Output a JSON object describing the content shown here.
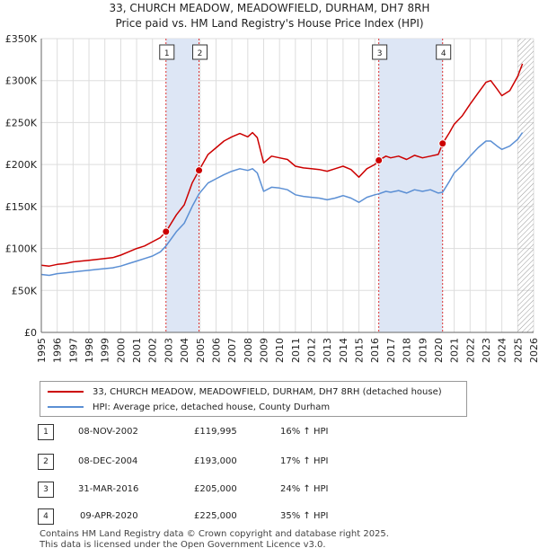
{
  "header": {
    "title_line1": "33, CHURCH MEADOW, MEADOWFIELD, DURHAM, DH7 8RH",
    "title_line2": "Price paid vs. HM Land Registry's House Price Index (HPI)"
  },
  "colors": {
    "property": "#cc0000",
    "hpi": "#5b8fd4",
    "shade": "#dde6f5",
    "grid": "#dddddd"
  },
  "legend": {
    "property_label": "33, CHURCH MEADOW, MEADOWFIELD, DURHAM, DH7 8RH (detached house)",
    "hpi_label": "HPI: Average price, detached house, County Durham"
  },
  "sales": [
    {
      "num": "1",
      "date": "08-NOV-2002",
      "price": "£119,995",
      "hpi_diff": "16% ↑ HPI"
    },
    {
      "num": "2",
      "date": "08-DEC-2004",
      "price": "£193,000",
      "hpi_diff": "17% ↑ HPI"
    },
    {
      "num": "3",
      "date": "31-MAR-2016",
      "price": "£205,000",
      "hpi_diff": "24% ↑ HPI"
    },
    {
      "num": "4",
      "date": "09-APR-2020",
      "price": "£225,000",
      "hpi_diff": "35% ↑ HPI"
    }
  ],
  "footer": {
    "line1": "Contains HM Land Registry data © Crown copyright and database right 2025.",
    "line2": "This data is licensed under the Open Government Licence v3.0."
  },
  "chart_data": {
    "type": "line",
    "title": "Price paid vs. HM Land Registry's House Price Index (HPI)",
    "xlabel": "",
    "ylabel": "",
    "xlim": [
      1995,
      2026
    ],
    "ylim": [
      0,
      350000
    ],
    "y_ticks": [
      {
        "value": 0,
        "label": "£0"
      },
      {
        "value": 50000,
        "label": "£50K"
      },
      {
        "value": 100000,
        "label": "£100K"
      },
      {
        "value": 150000,
        "label": "£150K"
      },
      {
        "value": 200000,
        "label": "£200K"
      },
      {
        "value": 250000,
        "label": "£250K"
      },
      {
        "value": 300000,
        "label": "£300K"
      },
      {
        "value": 350000,
        "label": "£350K"
      }
    ],
    "x_ticks": [
      "1995",
      "1996",
      "1997",
      "1998",
      "1999",
      "2000",
      "2001",
      "2002",
      "2003",
      "2004",
      "2005",
      "2006",
      "2007",
      "2008",
      "2009",
      "2010",
      "2011",
      "2012",
      "2013",
      "2014",
      "2015",
      "2016",
      "2017",
      "2018",
      "2019",
      "2020",
      "2021",
      "2022",
      "2023",
      "2024",
      "2025",
      "2026"
    ],
    "shaded_periods": [
      [
        2002.85,
        2004.93
      ],
      [
        2016.25,
        2020.27
      ]
    ],
    "hatched_after": 2025.0,
    "sale_markers": [
      {
        "label": "1",
        "x": 2002.85,
        "y": 119995
      },
      {
        "label": "2",
        "x": 2004.93,
        "y": 193000
      },
      {
        "label": "3",
        "x": 2016.25,
        "y": 205000
      },
      {
        "label": "4",
        "x": 2020.27,
        "y": 225000
      }
    ],
    "series": [
      {
        "name": "33, CHURCH MEADOW, MEADOWFIELD, DURHAM, DH7 8RH (detached house)",
        "x": [
          1995,
          1995.5,
          1996,
          1996.5,
          1997,
          1997.5,
          1998,
          1998.5,
          1999,
          1999.5,
          2000,
          2000.5,
          2001,
          2001.5,
          2002,
          2002.5,
          2002.85,
          2003.5,
          2004,
          2004.5,
          2004.93,
          2005.5,
          2006,
          2006.5,
          2007,
          2007.5,
          2008,
          2008.3,
          2008.6,
          2009,
          2009.5,
          2010,
          2010.5,
          2011,
          2011.5,
          2012,
          2012.5,
          2013,
          2013.5,
          2014,
          2014.5,
          2015,
          2015.5,
          2016,
          2016.25,
          2016.7,
          2017,
          2017.5,
          2018,
          2018.5,
          2019,
          2019.5,
          2020,
          2020.27,
          2020.7,
          2021,
          2021.5,
          2022,
          2022.5,
          2023,
          2023.3,
          2023.7,
          2024,
          2024.5,
          2025,
          2025.3
        ],
        "values": [
          80000,
          79000,
          81000,
          82000,
          84000,
          85000,
          86000,
          87000,
          88000,
          89000,
          92000,
          96000,
          100000,
          103000,
          108000,
          113000,
          119995,
          140000,
          152000,
          178000,
          193000,
          212000,
          220000,
          228000,
          233000,
          237000,
          233000,
          238000,
          232000,
          202000,
          210000,
          208000,
          206000,
          198000,
          196000,
          195000,
          194000,
          192000,
          195000,
          198000,
          194000,
          185000,
          195000,
          200000,
          205000,
          210000,
          208000,
          210000,
          206000,
          211000,
          208000,
          210000,
          212000,
          225000,
          238000,
          248000,
          258000,
          272000,
          285000,
          298000,
          300000,
          290000,
          282000,
          288000,
          305000,
          320000
        ]
      },
      {
        "name": "HPI: Average price, detached house, County Durham",
        "x": [
          1995,
          1995.5,
          1996,
          1996.5,
          1997,
          1997.5,
          1998,
          1998.5,
          1999,
          1999.5,
          2000,
          2000.5,
          2001,
          2001.5,
          2002,
          2002.5,
          2002.85,
          2003.5,
          2004,
          2004.5,
          2004.93,
          2005.5,
          2006,
          2006.5,
          2007,
          2007.5,
          2008,
          2008.3,
          2008.6,
          2009,
          2009.5,
          2010,
          2010.5,
          2011,
          2011.5,
          2012,
          2012.5,
          2013,
          2013.5,
          2014,
          2014.5,
          2015,
          2015.5,
          2016,
          2016.25,
          2016.7,
          2017,
          2017.5,
          2018,
          2018.5,
          2019,
          2019.5,
          2020,
          2020.27,
          2020.7,
          2021,
          2021.5,
          2022,
          2022.5,
          2023,
          2023.3,
          2023.7,
          2024,
          2024.5,
          2025,
          2025.3
        ],
        "values": [
          69000,
          68000,
          70000,
          71000,
          72000,
          73000,
          74000,
          75000,
          76000,
          77000,
          79000,
          82000,
          85000,
          88000,
          91000,
          96000,
          103000,
          120000,
          130000,
          150000,
          165000,
          178000,
          183000,
          188000,
          192000,
          195000,
          193000,
          195000,
          190000,
          168000,
          173000,
          172000,
          170000,
          164000,
          162000,
          161000,
          160000,
          158000,
          160000,
          163000,
          160000,
          155000,
          161000,
          164000,
          165000,
          168000,
          167000,
          169000,
          166000,
          170000,
          168000,
          170000,
          166000,
          167000,
          180000,
          190000,
          199000,
          210000,
          220000,
          228000,
          228000,
          222000,
          218000,
          222000,
          230000,
          238000
        ]
      }
    ]
  }
}
